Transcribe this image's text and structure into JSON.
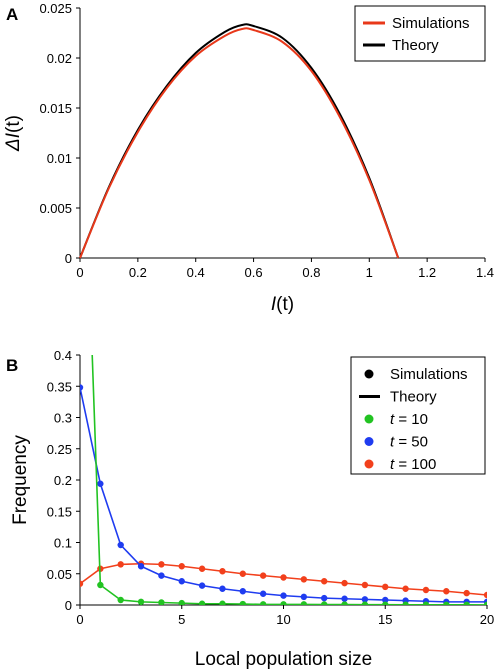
{
  "chart_data": [
    {
      "panel": "A",
      "type": "line",
      "xlabel": {
        "base": "I",
        "paren": "(t)"
      },
      "ylabel": {
        "base": "ΔI",
        "paren": "(t)"
      },
      "xlim": [
        0,
        1.4
      ],
      "ylim": [
        0,
        0.025
      ],
      "xticks": [
        "0",
        "0.2",
        "0.4",
        "0.6",
        "0.8",
        "1",
        "1.2",
        "1.4"
      ],
      "yticks": [
        "0",
        "0.005",
        "0.01",
        "0.015",
        "0.02",
        "0.025"
      ],
      "series": [
        {
          "name": "Simulations",
          "color": "#e8381a",
          "x": [
            0,
            0.1,
            0.2,
            0.3,
            0.4,
            0.5,
            0.56,
            0.6,
            0.7,
            0.8,
            0.9,
            1.0,
            1.1
          ],
          "y": [
            0,
            0.007,
            0.0126,
            0.017,
            0.0202,
            0.0222,
            0.0229,
            0.0228,
            0.0216,
            0.0187,
            0.014,
            0.0078,
            0
          ]
        },
        {
          "name": "Theory",
          "color": "#000000",
          "x": [
            0,
            0.1,
            0.2,
            0.3,
            0.4,
            0.5,
            0.56,
            0.6,
            0.7,
            0.8,
            0.9,
            1.0,
            1.1
          ],
          "y": [
            0,
            0.0071,
            0.0128,
            0.0172,
            0.0205,
            0.0226,
            0.0233,
            0.0232,
            0.022,
            0.019,
            0.0143,
            0.008,
            0
          ]
        }
      ],
      "legend": [
        {
          "label": "Simulations",
          "color": "#e8381a",
          "marker": "line"
        },
        {
          "label": "Theory",
          "color": "#000000",
          "marker": "line"
        }
      ],
      "legend_position": "top-right"
    },
    {
      "panel": "B",
      "type": "line",
      "xlabel": "Local population size",
      "ylabel": "Frequency",
      "xlim": [
        0,
        20
      ],
      "ylim": [
        0,
        0.4
      ],
      "xticks": [
        "0",
        "5",
        "10",
        "15",
        "20"
      ],
      "yticks": [
        "0",
        "0.05",
        "0.1",
        "0.15",
        "0.2",
        "0.25",
        "0.3",
        "0.35",
        "0.4"
      ],
      "series": [
        {
          "name": "t = 10",
          "color": "#22c322",
          "x": [
            0.6,
            1,
            2,
            3,
            4,
            5,
            6,
            7,
            8,
            9,
            10,
            11,
            12,
            13,
            14,
            15,
            16,
            17,
            18,
            19,
            20
          ],
          "y": [
            0.4,
            0.032,
            0.008,
            0.005,
            0.004,
            0.003,
            0.002,
            0.002,
            0.0015,
            0.001,
            0.001,
            0.001,
            0.0008,
            0.0007,
            0.0006,
            0.0005,
            0.0004,
            0.0004,
            0.0003,
            0.0003,
            0.0002
          ]
        },
        {
          "name": "t = 50",
          "color": "#1f3cf0",
          "x": [
            0,
            1,
            2,
            3,
            4,
            5,
            6,
            7,
            8,
            9,
            10,
            11,
            12,
            13,
            14,
            15,
            16,
            17,
            18,
            19,
            20
          ],
          "y": [
            0.348,
            0.194,
            0.096,
            0.062,
            0.047,
            0.038,
            0.031,
            0.026,
            0.022,
            0.018,
            0.015,
            0.013,
            0.011,
            0.01,
            0.009,
            0.008,
            0.007,
            0.006,
            0.005,
            0.005,
            0.005
          ]
        },
        {
          "name": "t = 100",
          "color": "#f2401c",
          "x": [
            0,
            1,
            2,
            3,
            4,
            5,
            6,
            7,
            8,
            9,
            10,
            11,
            12,
            13,
            14,
            15,
            16,
            17,
            18,
            19,
            20
          ],
          "y": [
            0.034,
            0.058,
            0.065,
            0.066,
            0.065,
            0.062,
            0.058,
            0.054,
            0.05,
            0.047,
            0.044,
            0.041,
            0.038,
            0.035,
            0.032,
            0.029,
            0.026,
            0.024,
            0.022,
            0.019,
            0.016
          ]
        }
      ],
      "legend": [
        {
          "label": "Simulations",
          "color": "#000000",
          "marker": "dot"
        },
        {
          "label": "Theory",
          "color": "#000000",
          "marker": "line"
        },
        {
          "label_prefix": "t",
          "label_value": "=   10",
          "color": "#22c322",
          "marker": "dot"
        },
        {
          "label_prefix": "t",
          "label_value": "=   50",
          "color": "#1f3cf0",
          "marker": "dot"
        },
        {
          "label_prefix": "t",
          "label_value": "= 100",
          "color": "#f2401c",
          "marker": "dot"
        }
      ],
      "legend_position": "top-right"
    }
  ]
}
